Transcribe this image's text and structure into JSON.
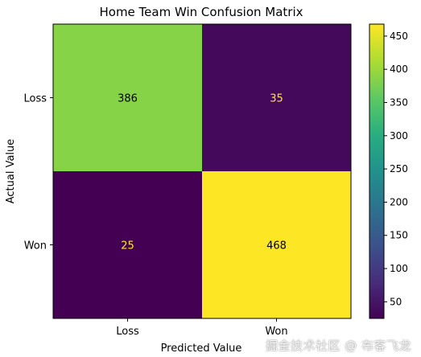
{
  "chart_data": {
    "type": "heatmap",
    "title": "Home Team Win Confusion Matrix",
    "xlabel": "Predicted Value",
    "ylabel": "Actual Value",
    "x_categories": [
      "Loss",
      "Won"
    ],
    "y_categories": [
      "Loss",
      "Won"
    ],
    "matrix": [
      [
        386,
        35
      ],
      [
        25,
        468
      ]
    ],
    "colormap": "viridis",
    "colorbar": {
      "range": [
        25,
        468
      ],
      "ticks": [
        50,
        100,
        150,
        200,
        250,
        300,
        350,
        400,
        450
      ]
    }
  },
  "watermark": "掘金技术社区 @ 布客飞龙"
}
